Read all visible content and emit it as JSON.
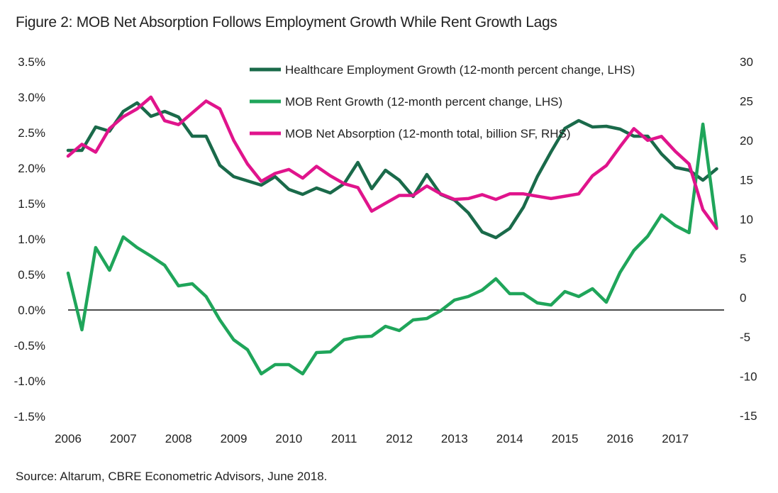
{
  "figure": {
    "title": "Figure 2: MOB Net Absorption Follows Employment Growth While Rent Growth Lags",
    "source": "Source: Altarum, CBRE Econometric Advisors, June 2018."
  },
  "chart_data": {
    "type": "line",
    "title": "Figure 2: MOB Net Absorption Follows Employment Growth While Rent Growth Lags",
    "x_tick_labels": [
      "2006",
      "2007",
      "2008",
      "2009",
      "2010",
      "2011",
      "2012",
      "2013",
      "2014",
      "2015",
      "2016",
      "2017"
    ],
    "y_left_tick_labels": [
      "3.5%",
      "3.0%",
      "2.5%",
      "2.0%",
      "1.5%",
      "1.0%",
      "0.5%",
      "0.0%",
      "-0.5%",
      "-1.0%",
      "-1.5%"
    ],
    "y_right_tick_labels": [
      "30",
      "25",
      "20",
      "15",
      "10",
      "5",
      "0",
      "-5",
      "-10",
      "-15"
    ],
    "y_left_range": [
      -1.5,
      3.5
    ],
    "y_right_range": [
      -15,
      30
    ],
    "x_range": [
      2006,
      2018
    ],
    "zero_line": true,
    "grid": false,
    "legend_position": "top-center",
    "series": [
      {
        "name": "Healthcare Employment Growth (12-month percent change, LHS)",
        "axis": "left",
        "color": "#1a6a4a",
        "x": [
          2006.0,
          2006.25,
          2006.5,
          2006.75,
          2007.0,
          2007.25,
          2007.5,
          2007.75,
          2008.0,
          2008.25,
          2008.5,
          2008.75,
          2009.0,
          2009.25,
          2009.5,
          2009.75,
          2010.0,
          2010.25,
          2010.5,
          2010.75,
          2011.0,
          2011.25,
          2011.5,
          2011.75,
          2012.0,
          2012.25,
          2012.5,
          2012.75,
          2013.0,
          2013.25,
          2013.5,
          2013.75,
          2014.0,
          2014.25,
          2014.5,
          2014.75,
          2015.0,
          2015.25,
          2015.5,
          2015.75,
          2016.0,
          2016.25,
          2016.5,
          2016.75,
          2017.0,
          2017.25,
          2017.5,
          2017.75
        ],
        "y": [
          2.25,
          2.25,
          2.58,
          2.52,
          2.8,
          2.92,
          2.73,
          2.8,
          2.72,
          2.45,
          2.45,
          2.04,
          1.88,
          1.82,
          1.76,
          1.88,
          1.7,
          1.63,
          1.72,
          1.65,
          1.78,
          2.08,
          1.71,
          1.97,
          1.83,
          1.6,
          1.91,
          1.63,
          1.55,
          1.37,
          1.1,
          1.02,
          1.15,
          1.45,
          1.88,
          2.23,
          2.56,
          2.67,
          2.58,
          2.59,
          2.55,
          2.45,
          2.45,
          2.2,
          2.01,
          1.97,
          1.83,
          1.99
        ]
      },
      {
        "name": "MOB Rent Growth (12-month percent change, LHS)",
        "axis": "left",
        "color": "#1fa55a",
        "x": [
          2006.0,
          2006.25,
          2006.5,
          2006.75,
          2007.0,
          2007.25,
          2007.5,
          2007.75,
          2008.0,
          2008.25,
          2008.5,
          2008.75,
          2009.0,
          2009.25,
          2009.5,
          2009.75,
          2010.0,
          2010.25,
          2010.5,
          2010.75,
          2011.0,
          2011.25,
          2011.5,
          2011.75,
          2012.0,
          2012.25,
          2012.5,
          2012.75,
          2013.0,
          2013.25,
          2013.5,
          2013.75,
          2014.0,
          2014.25,
          2014.5,
          2014.75,
          2015.0,
          2015.25,
          2015.5,
          2015.75,
          2016.0,
          2016.25,
          2016.5,
          2016.75,
          2017.0,
          2017.25,
          2017.5,
          2017.75
        ],
        "y": [
          0.52,
          -0.28,
          0.88,
          0.56,
          1.03,
          0.88,
          0.76,
          0.63,
          0.34,
          0.37,
          0.19,
          -0.14,
          -0.42,
          -0.56,
          -0.9,
          -0.77,
          -0.77,
          -0.9,
          -0.6,
          -0.59,
          -0.42,
          -0.38,
          -0.37,
          -0.23,
          -0.29,
          -0.14,
          -0.12,
          -0.01,
          0.14,
          0.19,
          0.28,
          0.44,
          0.23,
          0.23,
          0.1,
          0.07,
          0.26,
          0.19,
          0.3,
          0.11,
          0.53,
          0.84,
          1.04,
          1.34,
          1.19,
          1.09,
          2.62,
          1.16
        ]
      },
      {
        "name": "MOB Net Absorption (12-month total, billion SF, RHS)",
        "axis": "right",
        "color": "#e0148c",
        "x": [
          2006.0,
          2006.25,
          2006.5,
          2006.75,
          2007.0,
          2007.25,
          2007.5,
          2007.75,
          2008.0,
          2008.25,
          2008.5,
          2008.75,
          2009.0,
          2009.25,
          2009.5,
          2009.75,
          2010.0,
          2010.25,
          2010.5,
          2010.75,
          2011.0,
          2011.25,
          2011.5,
          2011.75,
          2012.0,
          2012.25,
          2012.5,
          2012.75,
          2013.0,
          2013.25,
          2013.5,
          2013.75,
          2014.0,
          2014.25,
          2014.5,
          2014.75,
          2015.0,
          2015.25,
          2015.5,
          2015.75,
          2016.0,
          2016.25,
          2016.5,
          2016.75,
          2017.0,
          2017.25,
          2017.5,
          2017.75
        ],
        "y": [
          18,
          19.5,
          18.5,
          21.5,
          23,
          24,
          25.5,
          22.5,
          22,
          23.5,
          25,
          24,
          20,
          17,
          14.8,
          15.8,
          16.3,
          15.2,
          16.7,
          15.5,
          14.5,
          14,
          11,
          12,
          13,
          13,
          14.2,
          13.2,
          12.5,
          12.6,
          13.1,
          12.5,
          13.2,
          13.2,
          12.9,
          12.6,
          12.9,
          13.2,
          15.5,
          16.8,
          19.2,
          21.5,
          20,
          20.5,
          18.6,
          17,
          11.2,
          8.8
        ]
      }
    ]
  }
}
